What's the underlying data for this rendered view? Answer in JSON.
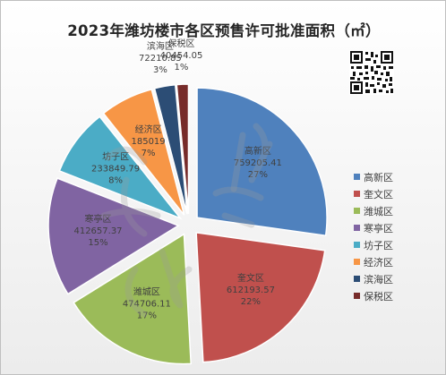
{
  "title": "2023年潍坊楼市各区预售许可批准面积（㎡）",
  "chart_data": {
    "type": "pie",
    "title": "2023年潍坊楼市各区预售许可批准面积（㎡）",
    "exploded": true,
    "legend_position": "right",
    "slices": [
      {
        "name": "高新区",
        "value_text": "759205.41",
        "value": 759205.41,
        "percent_text": "27%",
        "color": "#4f81bd"
      },
      {
        "name": "奎文区",
        "value_text": "612193.57",
        "value": 612193.57,
        "percent_text": "22%",
        "color": "#c0504d"
      },
      {
        "name": "潍城区",
        "value_text": "474706.11",
        "value": 474706.11,
        "percent_text": "17%",
        "color": "#9bbb59"
      },
      {
        "name": "寒亭区",
        "value_text": "412657.37",
        "value": 412657.37,
        "percent_text": "15%",
        "color": "#8064a2"
      },
      {
        "name": "坊子区",
        "value_text": "233849.79",
        "value": 233849.79,
        "percent_text": "8%",
        "color": "#4bacc6"
      },
      {
        "name": "经济区",
        "value_text": "185019",
        "value": 185019,
        "percent_text": "7%",
        "color": "#f79646"
      },
      {
        "name": "滨海区",
        "value_text": "72210.85",
        "value": 72210.85,
        "percent_text": "3%",
        "color": "#2c4d75"
      },
      {
        "name": "保税区",
        "value_text": "40454.05",
        "value": 40454.05,
        "percent_text": "1%",
        "color": "#772c2a"
      }
    ]
  }
}
